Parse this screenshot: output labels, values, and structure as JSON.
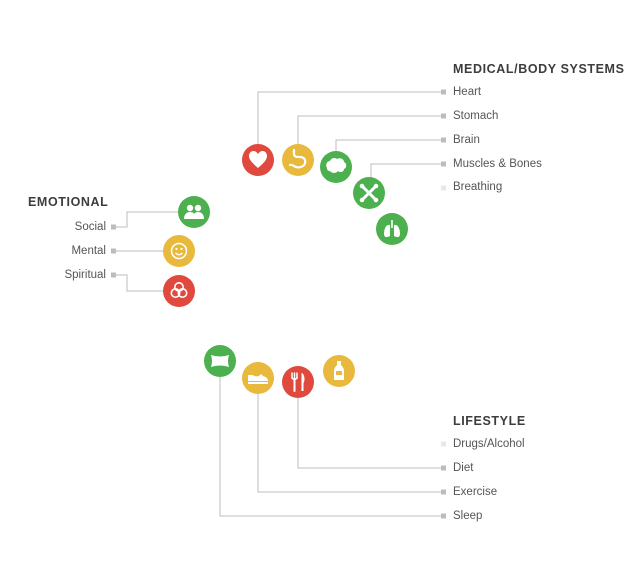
{
  "colors": {
    "red": "#e0493e",
    "yellow": "#e8b93c",
    "green": "#4bb04d",
    "line": "#bdbdbd"
  },
  "groups": {
    "medical": {
      "heading": "MEDICAL/BODY SYSTEMS",
      "items": [
        {
          "label": "Heart",
          "icon": "heart-icon",
          "color": "red"
        },
        {
          "label": "Stomach",
          "icon": "stomach-icon",
          "color": "yellow"
        },
        {
          "label": "Brain",
          "icon": "brain-icon",
          "color": "green"
        },
        {
          "label": "Muscles & Bones",
          "icon": "bone-icon",
          "color": "green"
        },
        {
          "label": "Breathing",
          "icon": "lungs-icon",
          "color": "green"
        }
      ]
    },
    "emotional": {
      "heading": "EMOTIONAL",
      "items": [
        {
          "label": "Social",
          "icon": "people-icon",
          "color": "green"
        },
        {
          "label": "Mental",
          "icon": "smiley-icon",
          "color": "yellow"
        },
        {
          "label": "Spiritual",
          "icon": "trinity-knot-icon",
          "color": "red"
        }
      ]
    },
    "lifestyle": {
      "heading": "LIFESTYLE",
      "items": [
        {
          "label": "Drugs/Alcohol",
          "icon": "bottle-icon",
          "color": "yellow"
        },
        {
          "label": "Diet",
          "icon": "fork-knife-icon",
          "color": "red"
        },
        {
          "label": "Exercise",
          "icon": "sneaker-icon",
          "color": "yellow"
        },
        {
          "label": "Sleep",
          "icon": "pillow-icon",
          "color": "green"
        }
      ]
    }
  }
}
